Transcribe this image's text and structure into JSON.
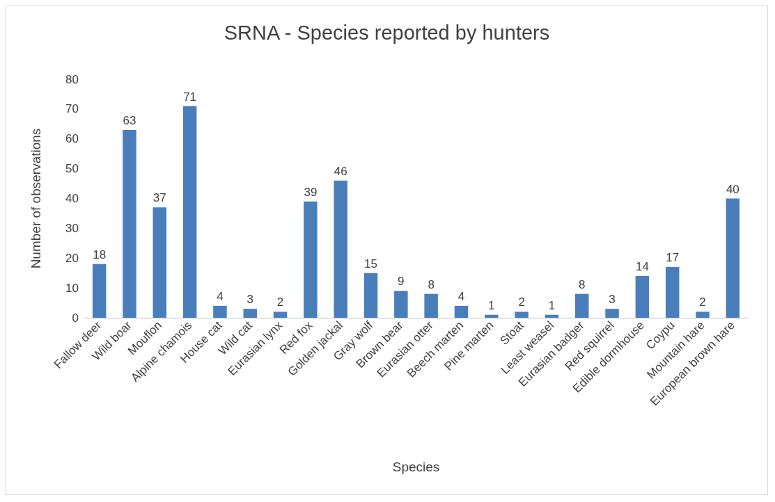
{
  "chart_data": {
    "type": "bar",
    "title": "SRNA - Species reported by hunters",
    "xlabel": "Species",
    "ylabel": "Number of observations",
    "categories": [
      "Fallow deer",
      "Wild boar",
      "Mouflon",
      "Alpine chamois",
      "House cat",
      "Wild cat",
      "Eurasian lynx",
      "Red fox",
      "Golden jackal",
      "Gray wolf",
      "Brown bear",
      "Eurasian otter",
      "Beech marten",
      "Pine marten",
      "Stoat",
      "Least weasel",
      "Eurasian badger",
      "Red squirrel",
      "Edible dormhouse",
      "Coypu",
      "Mountain hare",
      "European brown hare"
    ],
    "values": [
      18,
      63,
      37,
      71,
      4,
      3,
      2,
      39,
      46,
      15,
      9,
      8,
      4,
      1,
      2,
      1,
      8,
      3,
      14,
      17,
      2,
      40
    ],
    "color": "#4a7ebb",
    "ylim": [
      0,
      80
    ],
    "yticks": [
      0,
      10,
      20,
      30,
      40,
      50,
      60,
      70,
      80
    ],
    "grid": false,
    "data_labels": true
  }
}
